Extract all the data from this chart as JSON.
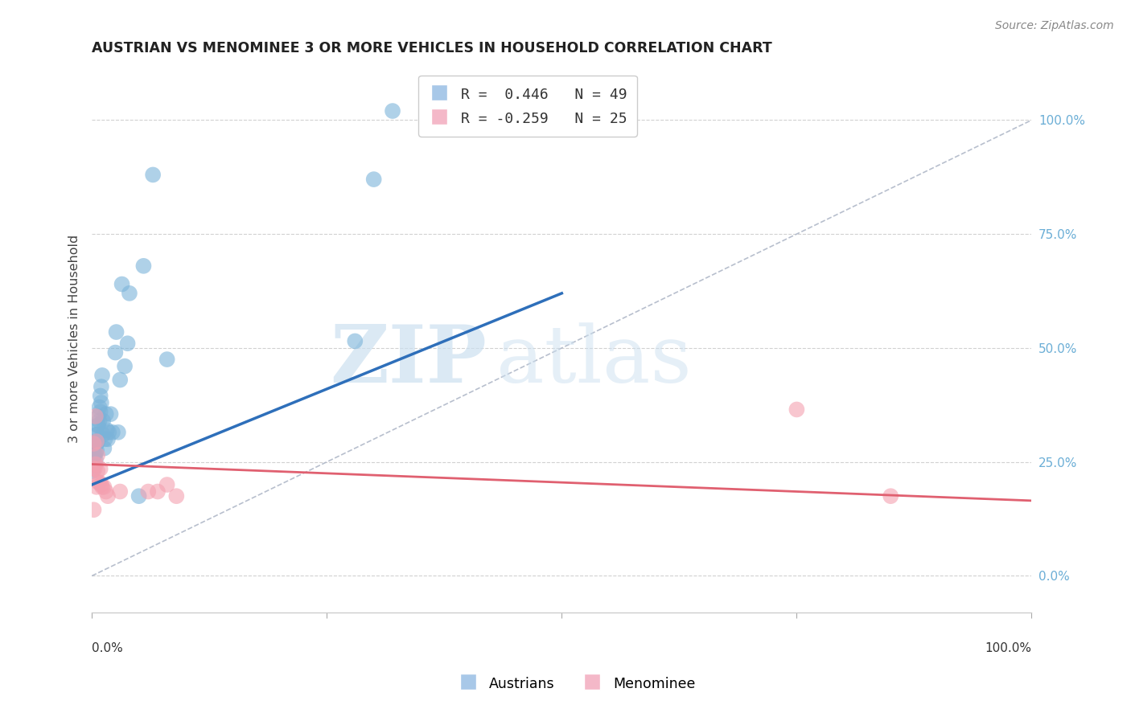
{
  "title": "AUSTRIAN VS MENOMINEE 3 OR MORE VEHICLES IN HOUSEHOLD CORRELATION CHART",
  "source": "Source: ZipAtlas.com",
  "ylabel": "3 or more Vehicles in Household",
  "xlim": [
    0,
    1
  ],
  "ylim": [
    -0.08,
    1.12
  ],
  "right_yticks": [
    0.0,
    0.25,
    0.5,
    0.75,
    1.0
  ],
  "right_yticklabels": [
    "0.0%",
    "25.0%",
    "50.0%",
    "75.0%",
    "100.0%"
  ],
  "austrians_x": [
    0.001,
    0.001,
    0.002,
    0.002,
    0.003,
    0.003,
    0.004,
    0.004,
    0.004,
    0.005,
    0.005,
    0.005,
    0.006,
    0.006,
    0.006,
    0.007,
    0.007,
    0.008,
    0.008,
    0.009,
    0.009,
    0.01,
    0.01,
    0.011,
    0.012,
    0.012,
    0.013,
    0.014,
    0.015,
    0.016,
    0.017,
    0.018,
    0.02,
    0.022,
    0.025,
    0.026,
    0.028,
    0.03,
    0.032,
    0.035,
    0.038,
    0.04,
    0.05,
    0.055,
    0.065,
    0.08,
    0.32,
    0.3,
    0.28
  ],
  "austrians_y": [
    0.245,
    0.23,
    0.265,
    0.25,
    0.28,
    0.265,
    0.295,
    0.27,
    0.255,
    0.31,
    0.29,
    0.275,
    0.33,
    0.31,
    0.295,
    0.35,
    0.33,
    0.37,
    0.34,
    0.395,
    0.36,
    0.415,
    0.38,
    0.44,
    0.34,
    0.31,
    0.28,
    0.3,
    0.355,
    0.32,
    0.3,
    0.315,
    0.355,
    0.315,
    0.49,
    0.535,
    0.315,
    0.43,
    0.64,
    0.46,
    0.51,
    0.62,
    0.175,
    0.68,
    0.88,
    0.475,
    1.02,
    0.87,
    0.515
  ],
  "menominee_x": [
    0.001,
    0.002,
    0.002,
    0.003,
    0.004,
    0.004,
    0.005,
    0.005,
    0.006,
    0.006,
    0.007,
    0.008,
    0.009,
    0.01,
    0.011,
    0.013,
    0.015,
    0.017,
    0.03,
    0.06,
    0.07,
    0.08,
    0.09,
    0.75,
    0.85
  ],
  "menominee_y": [
    0.235,
    0.29,
    0.145,
    0.235,
    0.35,
    0.245,
    0.295,
    0.195,
    0.265,
    0.23,
    0.205,
    0.205,
    0.235,
    0.2,
    0.195,
    0.195,
    0.185,
    0.175,
    0.185,
    0.185,
    0.185,
    0.2,
    0.175,
    0.365,
    0.175
  ],
  "blue_line_x": [
    0.0,
    0.5
  ],
  "blue_line_y": [
    0.2,
    0.62
  ],
  "pink_line_x": [
    0.0,
    1.0
  ],
  "pink_line_y": [
    0.245,
    0.165
  ],
  "diag_line_x": [
    0.0,
    1.0
  ],
  "diag_line_y": [
    0.0,
    1.0
  ],
  "watermark_zip": "ZIP",
  "watermark_atlas": "atlas",
  "dot_color_blue": "#7ab3d9",
  "dot_color_pink": "#f4a0b0",
  "line_color_blue": "#2e6fba",
  "line_color_pink": "#e06070",
  "line_color_diag": "#b0b8c8",
  "grid_color": "#cccccc",
  "bg_color": "#ffffff",
  "right_label_color": "#6baed6"
}
